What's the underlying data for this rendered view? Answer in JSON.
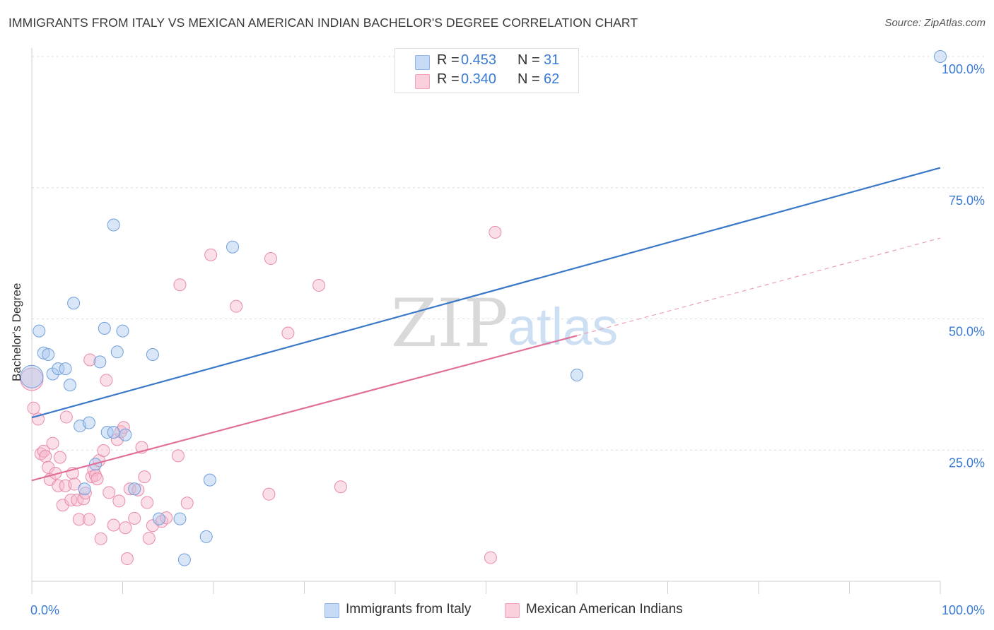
{
  "title": "IMMIGRANTS FROM ITALY VS MEXICAN AMERICAN INDIAN BACHELOR'S DEGREE CORRELATION CHART",
  "source": "Source: ZipAtlas.com",
  "watermark": {
    "zip": "ZIP",
    "atlas": "atlas"
  },
  "legend": {
    "r_label": "R =",
    "n_label": "N =",
    "rows": [
      {
        "r": "0.453",
        "n": "31",
        "color": "#a9c8f0"
      },
      {
        "r": "0.340",
        "n": "62",
        "color": "#f6b8cb"
      }
    ]
  },
  "chart_data": {
    "type": "scatter",
    "title": "IMMIGRANTS FROM ITALY VS MEXICAN AMERICAN INDIAN BACHELOR'S DEGREE CORRELATION CHART",
    "xlabel": "",
    "ylabel": "Bachelor's Degree",
    "xlim": [
      0,
      100
    ],
    "ylim": [
      0,
      100
    ],
    "x_tick_labels": [
      "0.0%",
      "100.0%"
    ],
    "y_tick_labels": [
      "25.0%",
      "50.0%",
      "75.0%",
      "100.0%"
    ],
    "y_ticks": [
      25,
      50,
      75,
      100
    ],
    "legend_position": "top-center",
    "grid": true,
    "series": [
      {
        "name": "Immigrants from Italy",
        "color": "#3a78c9",
        "fill": "#a9c8f0",
        "r": 0.453,
        "n": 31,
        "trend": {
          "x0": 0,
          "y0": 31.2,
          "x1": 100,
          "y1": 78.8
        },
        "points": [
          {
            "x": 0.0,
            "y": 39.0,
            "big": true
          },
          {
            "x": 0.8,
            "y": 47.7
          },
          {
            "x": 1.3,
            "y": 43.5
          },
          {
            "x": 1.8,
            "y": 43.2
          },
          {
            "x": 2.3,
            "y": 39.5
          },
          {
            "x": 2.9,
            "y": 40.5
          },
          {
            "x": 3.7,
            "y": 40.5
          },
          {
            "x": 4.2,
            "y": 37.4
          },
          {
            "x": 4.6,
            "y": 53.0
          },
          {
            "x": 5.3,
            "y": 29.6
          },
          {
            "x": 5.8,
            "y": 17.6
          },
          {
            "x": 6.3,
            "y": 30.2
          },
          {
            "x": 7.5,
            "y": 41.8
          },
          {
            "x": 8.0,
            "y": 48.2
          },
          {
            "x": 8.3,
            "y": 28.4
          },
          {
            "x": 9.0,
            "y": 67.9
          },
          {
            "x": 9.4,
            "y": 43.7
          },
          {
            "x": 10.0,
            "y": 47.7
          },
          {
            "x": 10.3,
            "y": 27.9
          },
          {
            "x": 11.3,
            "y": 17.6
          },
          {
            "x": 13.3,
            "y": 43.2
          },
          {
            "x": 14.0,
            "y": 11.9
          },
          {
            "x": 16.3,
            "y": 11.9
          },
          {
            "x": 16.8,
            "y": 4.1
          },
          {
            "x": 19.2,
            "y": 8.5
          },
          {
            "x": 19.6,
            "y": 19.3
          },
          {
            "x": 22.1,
            "y": 63.7
          },
          {
            "x": 7.0,
            "y": 22.3
          },
          {
            "x": 9.0,
            "y": 28.4
          },
          {
            "x": 60.0,
            "y": 39.3
          },
          {
            "x": 100.0,
            "y": 100.0
          }
        ]
      },
      {
        "name": "Mexican American Indians",
        "color": "#e0709a",
        "fill": "#f6b8cb",
        "r": 0.34,
        "n": 62,
        "trend": {
          "x0": 0,
          "y0": 19.2,
          "x1": 60,
          "y1": 46.8
        },
        "trend_dashed": {
          "x0": 60,
          "y0": 46.8,
          "x1": 100,
          "y1": 65.4
        },
        "points": [
          {
            "x": 0.0,
            "y": 38.5,
            "big": true
          },
          {
            "x": 0.2,
            "y": 33.0
          },
          {
            "x": 0.7,
            "y": 30.9
          },
          {
            "x": 1.0,
            "y": 24.3
          },
          {
            "x": 1.3,
            "y": 24.8
          },
          {
            "x": 1.5,
            "y": 23.8
          },
          {
            "x": 1.8,
            "y": 21.7
          },
          {
            "x": 2.0,
            "y": 19.4
          },
          {
            "x": 2.3,
            "y": 26.3
          },
          {
            "x": 2.6,
            "y": 20.6
          },
          {
            "x": 2.9,
            "y": 18.2
          },
          {
            "x": 3.1,
            "y": 23.6
          },
          {
            "x": 3.4,
            "y": 14.5
          },
          {
            "x": 3.7,
            "y": 18.2
          },
          {
            "x": 3.8,
            "y": 31.3
          },
          {
            "x": 4.3,
            "y": 15.5
          },
          {
            "x": 4.5,
            "y": 20.6
          },
          {
            "x": 4.7,
            "y": 18.5
          },
          {
            "x": 5.0,
            "y": 15.5
          },
          {
            "x": 5.2,
            "y": 11.8
          },
          {
            "x": 5.7,
            "y": 15.7
          },
          {
            "x": 5.9,
            "y": 16.8
          },
          {
            "x": 6.3,
            "y": 11.8
          },
          {
            "x": 6.4,
            "y": 42.2
          },
          {
            "x": 6.6,
            "y": 19.9
          },
          {
            "x": 6.8,
            "y": 21.2
          },
          {
            "x": 7.0,
            "y": 20.2
          },
          {
            "x": 7.2,
            "y": 19.5
          },
          {
            "x": 7.4,
            "y": 23.0
          },
          {
            "x": 7.6,
            "y": 8.1
          },
          {
            "x": 7.9,
            "y": 24.9
          },
          {
            "x": 8.2,
            "y": 38.3
          },
          {
            "x": 8.5,
            "y": 16.9
          },
          {
            "x": 9.0,
            "y": 10.7
          },
          {
            "x": 9.4,
            "y": 27.0
          },
          {
            "x": 9.6,
            "y": 15.3
          },
          {
            "x": 9.8,
            "y": 28.5
          },
          {
            "x": 10.1,
            "y": 29.3
          },
          {
            "x": 10.3,
            "y": 10.2
          },
          {
            "x": 10.5,
            "y": 4.3
          },
          {
            "x": 10.8,
            "y": 17.6
          },
          {
            "x": 11.3,
            "y": 12.0
          },
          {
            "x": 11.7,
            "y": 17.4
          },
          {
            "x": 12.1,
            "y": 25.5
          },
          {
            "x": 12.4,
            "y": 19.9
          },
          {
            "x": 12.7,
            "y": 15.0
          },
          {
            "x": 12.9,
            "y": 8.2
          },
          {
            "x": 13.3,
            "y": 10.6
          },
          {
            "x": 14.3,
            "y": 11.4
          },
          {
            "x": 14.8,
            "y": 12.1
          },
          {
            "x": 16.1,
            "y": 23.9
          },
          {
            "x": 16.3,
            "y": 56.5
          },
          {
            "x": 17.1,
            "y": 14.9
          },
          {
            "x": 19.7,
            "y": 62.2
          },
          {
            "x": 22.5,
            "y": 52.4
          },
          {
            "x": 26.1,
            "y": 16.6
          },
          {
            "x": 26.3,
            "y": 61.5
          },
          {
            "x": 28.2,
            "y": 47.3
          },
          {
            "x": 31.6,
            "y": 56.4
          },
          {
            "x": 34.0,
            "y": 18.0
          },
          {
            "x": 50.5,
            "y": 4.5
          },
          {
            "x": 51.0,
            "y": 66.5
          }
        ]
      }
    ]
  }
}
